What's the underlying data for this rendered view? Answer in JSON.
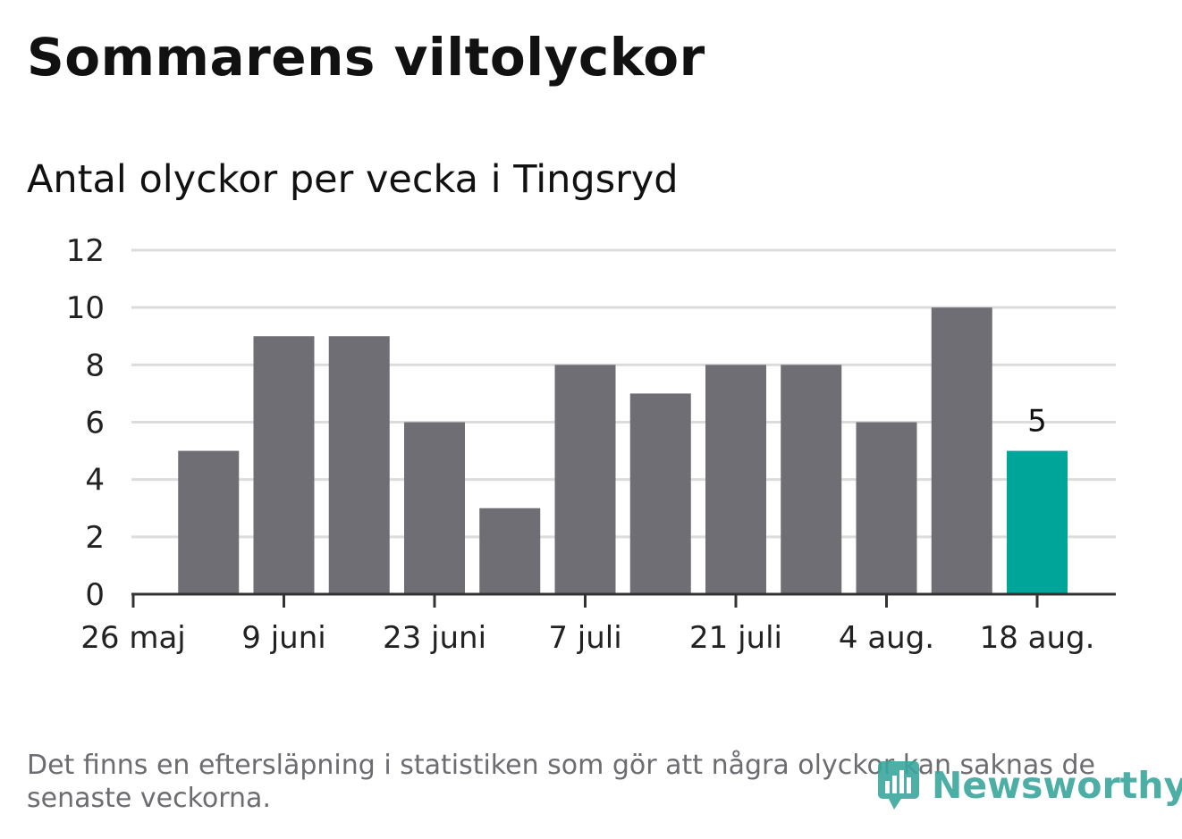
{
  "title": "Sommarens viltolyckor",
  "subtitle": "Antal olyckor per vecka i Tingsryd",
  "footnote": "Det finns en eftersläpning i statistiken som gör att några olyckor kan saknas de senaste veckorna.",
  "logo": {
    "text": "Newsworthy",
    "icon": "newsworthy-logo-icon",
    "color": "#3aa69c"
  },
  "colors": {
    "bar": "#6f6e74",
    "highlight": "#00a59a",
    "grid": "#dcdcdc",
    "axis": "#333333"
  },
  "chart_data": {
    "type": "bar",
    "title": "Antal olyckor per vecka i Tingsryd",
    "xlabel": "",
    "ylabel": "",
    "ylim": [
      0,
      12
    ],
    "yticks": [
      0,
      2,
      4,
      6,
      8,
      10,
      12
    ],
    "xticks": [
      "26 maj",
      "9 juni",
      "23 juni",
      "7 juli",
      "21 juli",
      "4 aug.",
      "18 aug."
    ],
    "grid": true,
    "values": [
      5,
      9,
      9,
      6,
      3,
      8,
      7,
      8,
      8,
      6,
      10,
      5
    ],
    "highlight_index": 11,
    "data_labels": [
      {
        "index": 11,
        "text": "5"
      }
    ]
  }
}
